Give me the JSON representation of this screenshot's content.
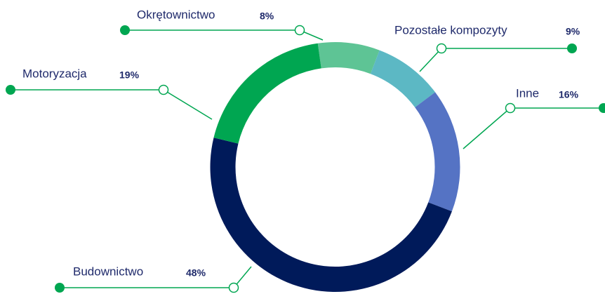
{
  "chart_data": {
    "type": "donut",
    "categories": [
      "Okrętownictwo",
      "Pozostałe kompozyty",
      "Inne",
      "Budownictwo",
      "Motoryzacja"
    ],
    "values": [
      8,
      9,
      16,
      48,
      19
    ],
    "value_labels": [
      "8%",
      "9%",
      "16%",
      "48%",
      "19%"
    ],
    "colors": [
      "#5ec495",
      "#5cb8c4",
      "#5573c4",
      "#001a5a",
      "#00a651"
    ]
  }
}
